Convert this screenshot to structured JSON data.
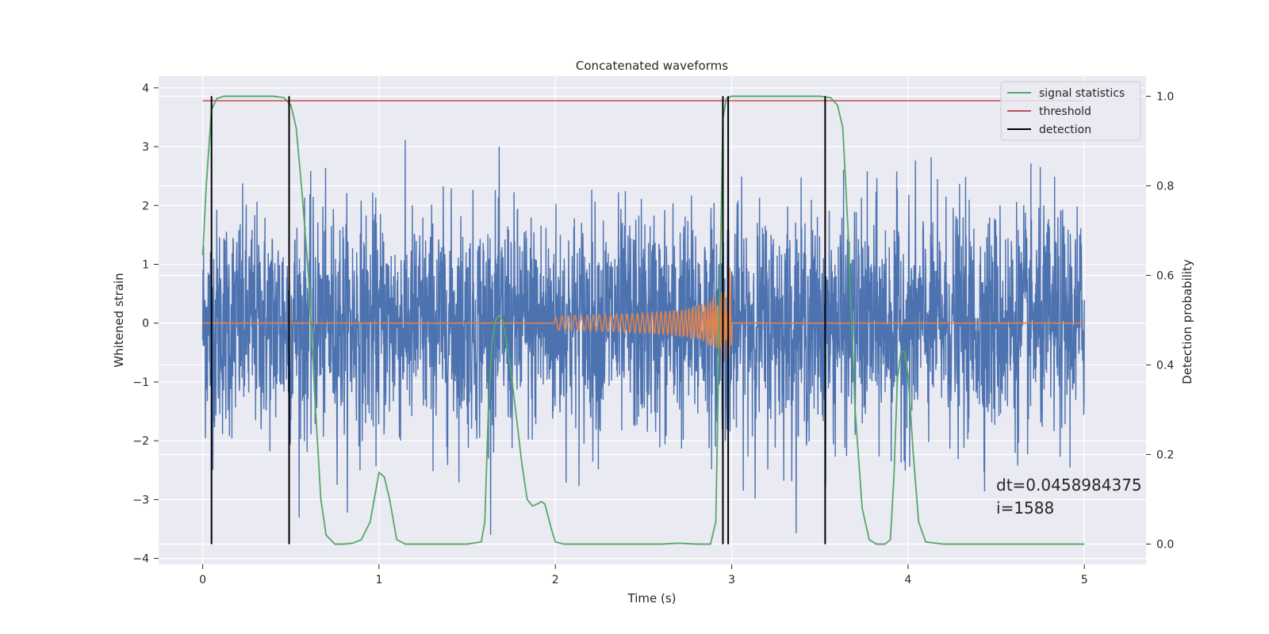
{
  "chart_data": {
    "type": "line",
    "title": "Concatenated waveforms",
    "xlabel": "Time (s)",
    "ylabel": "Whitened strain",
    "y2label": "Detection probability",
    "xlim": [
      -0.25,
      5.35
    ],
    "ylim": [
      -4.1,
      4.2
    ],
    "y2lim": [
      -0.045,
      1.045
    ],
    "xticks": [
      0,
      1,
      2,
      3,
      4,
      5
    ],
    "yticks": [
      4,
      3,
      2,
      1,
      0,
      -1,
      -2,
      -3,
      -4
    ],
    "y2ticks": [
      1.0,
      0.8,
      0.6,
      0.4,
      0.2,
      0.0
    ],
    "xtick_labels": [
      "0",
      "1",
      "2",
      "3",
      "4",
      "5"
    ],
    "ytick_labels": [
      "4",
      "3",
      "2",
      "1",
      "0",
      "−1",
      "−2",
      "−3",
      "−4"
    ],
    "y2tick_labels": [
      "1.0",
      "0.8",
      "0.6",
      "0.4",
      "0.2",
      "0.0"
    ],
    "grid": true,
    "legend_position": "top-right",
    "background": "#eaeaf2",
    "series": [
      {
        "name": "signal statistics",
        "axis": "right",
        "color": "#55a868",
        "x": [
          0.0,
          0.02,
          0.05,
          0.08,
          0.12,
          0.2,
          0.3,
          0.4,
          0.46,
          0.5,
          0.53,
          0.56,
          0.6,
          0.64,
          0.67,
          0.7,
          0.75,
          0.8,
          0.85,
          0.9,
          0.95,
          1.0,
          1.03,
          1.06,
          1.1,
          1.15,
          1.2,
          1.3,
          1.4,
          1.5,
          1.58,
          1.6,
          1.62,
          1.64,
          1.66,
          1.68,
          1.7,
          1.72,
          1.75,
          1.78,
          1.81,
          1.84,
          1.87,
          1.9,
          1.92,
          1.94,
          1.96,
          1.98,
          2.0,
          2.05,
          2.1,
          2.2,
          2.4,
          2.6,
          2.7,
          2.8,
          2.88,
          2.91,
          2.93,
          2.95,
          2.97,
          3.0,
          3.1,
          3.2,
          3.3,
          3.4,
          3.5,
          3.56,
          3.6,
          3.63,
          3.66,
          3.7,
          3.74,
          3.78,
          3.82,
          3.85,
          3.87,
          3.9,
          3.92,
          3.94,
          3.96,
          3.98,
          4.0,
          4.03,
          4.06,
          4.1,
          4.2,
          4.5,
          4.8,
          5.0
        ],
        "y": [
          0.645,
          0.8,
          0.97,
          0.995,
          1.0,
          1.0,
          1.0,
          1.0,
          0.997,
          0.98,
          0.93,
          0.8,
          0.6,
          0.3,
          0.1,
          0.02,
          0.0,
          0.0,
          0.002,
          0.01,
          0.05,
          0.16,
          0.15,
          0.1,
          0.01,
          0.0,
          0.0,
          0.0,
          0.0,
          0.0,
          0.005,
          0.05,
          0.3,
          0.45,
          0.5,
          0.51,
          0.5,
          0.46,
          0.38,
          0.28,
          0.18,
          0.1,
          0.085,
          0.09,
          0.095,
          0.09,
          0.06,
          0.03,
          0.005,
          0.0,
          0.0,
          0.0,
          0.0,
          0.0,
          0.002,
          0.0,
          0.0,
          0.05,
          0.5,
          0.95,
          0.995,
          1.0,
          1.0,
          1.0,
          1.0,
          1.0,
          1.0,
          0.997,
          0.98,
          0.93,
          0.7,
          0.3,
          0.08,
          0.01,
          0.0,
          0.0,
          0.0,
          0.01,
          0.15,
          0.37,
          0.43,
          0.43,
          0.38,
          0.2,
          0.05,
          0.005,
          0.0,
          0.0,
          0.0,
          0.0
        ]
      },
      {
        "name": "threshold",
        "axis": "right",
        "color": "#c44e52",
        "x": [
          0.0,
          5.0
        ],
        "y": [
          0.99,
          0.99
        ]
      },
      {
        "name": "detection",
        "axis": "right",
        "color": "#000000",
        "x_positions": [
          0.05,
          0.49,
          2.95,
          2.98,
          3.53
        ],
        "ymin": 0.0,
        "ymax": 1.0
      }
    ],
    "annotation": {
      "text_lines": [
        "dt=0.0458984375",
        " i=1588"
      ],
      "x": 4.5,
      "y": -2.85
    }
  }
}
